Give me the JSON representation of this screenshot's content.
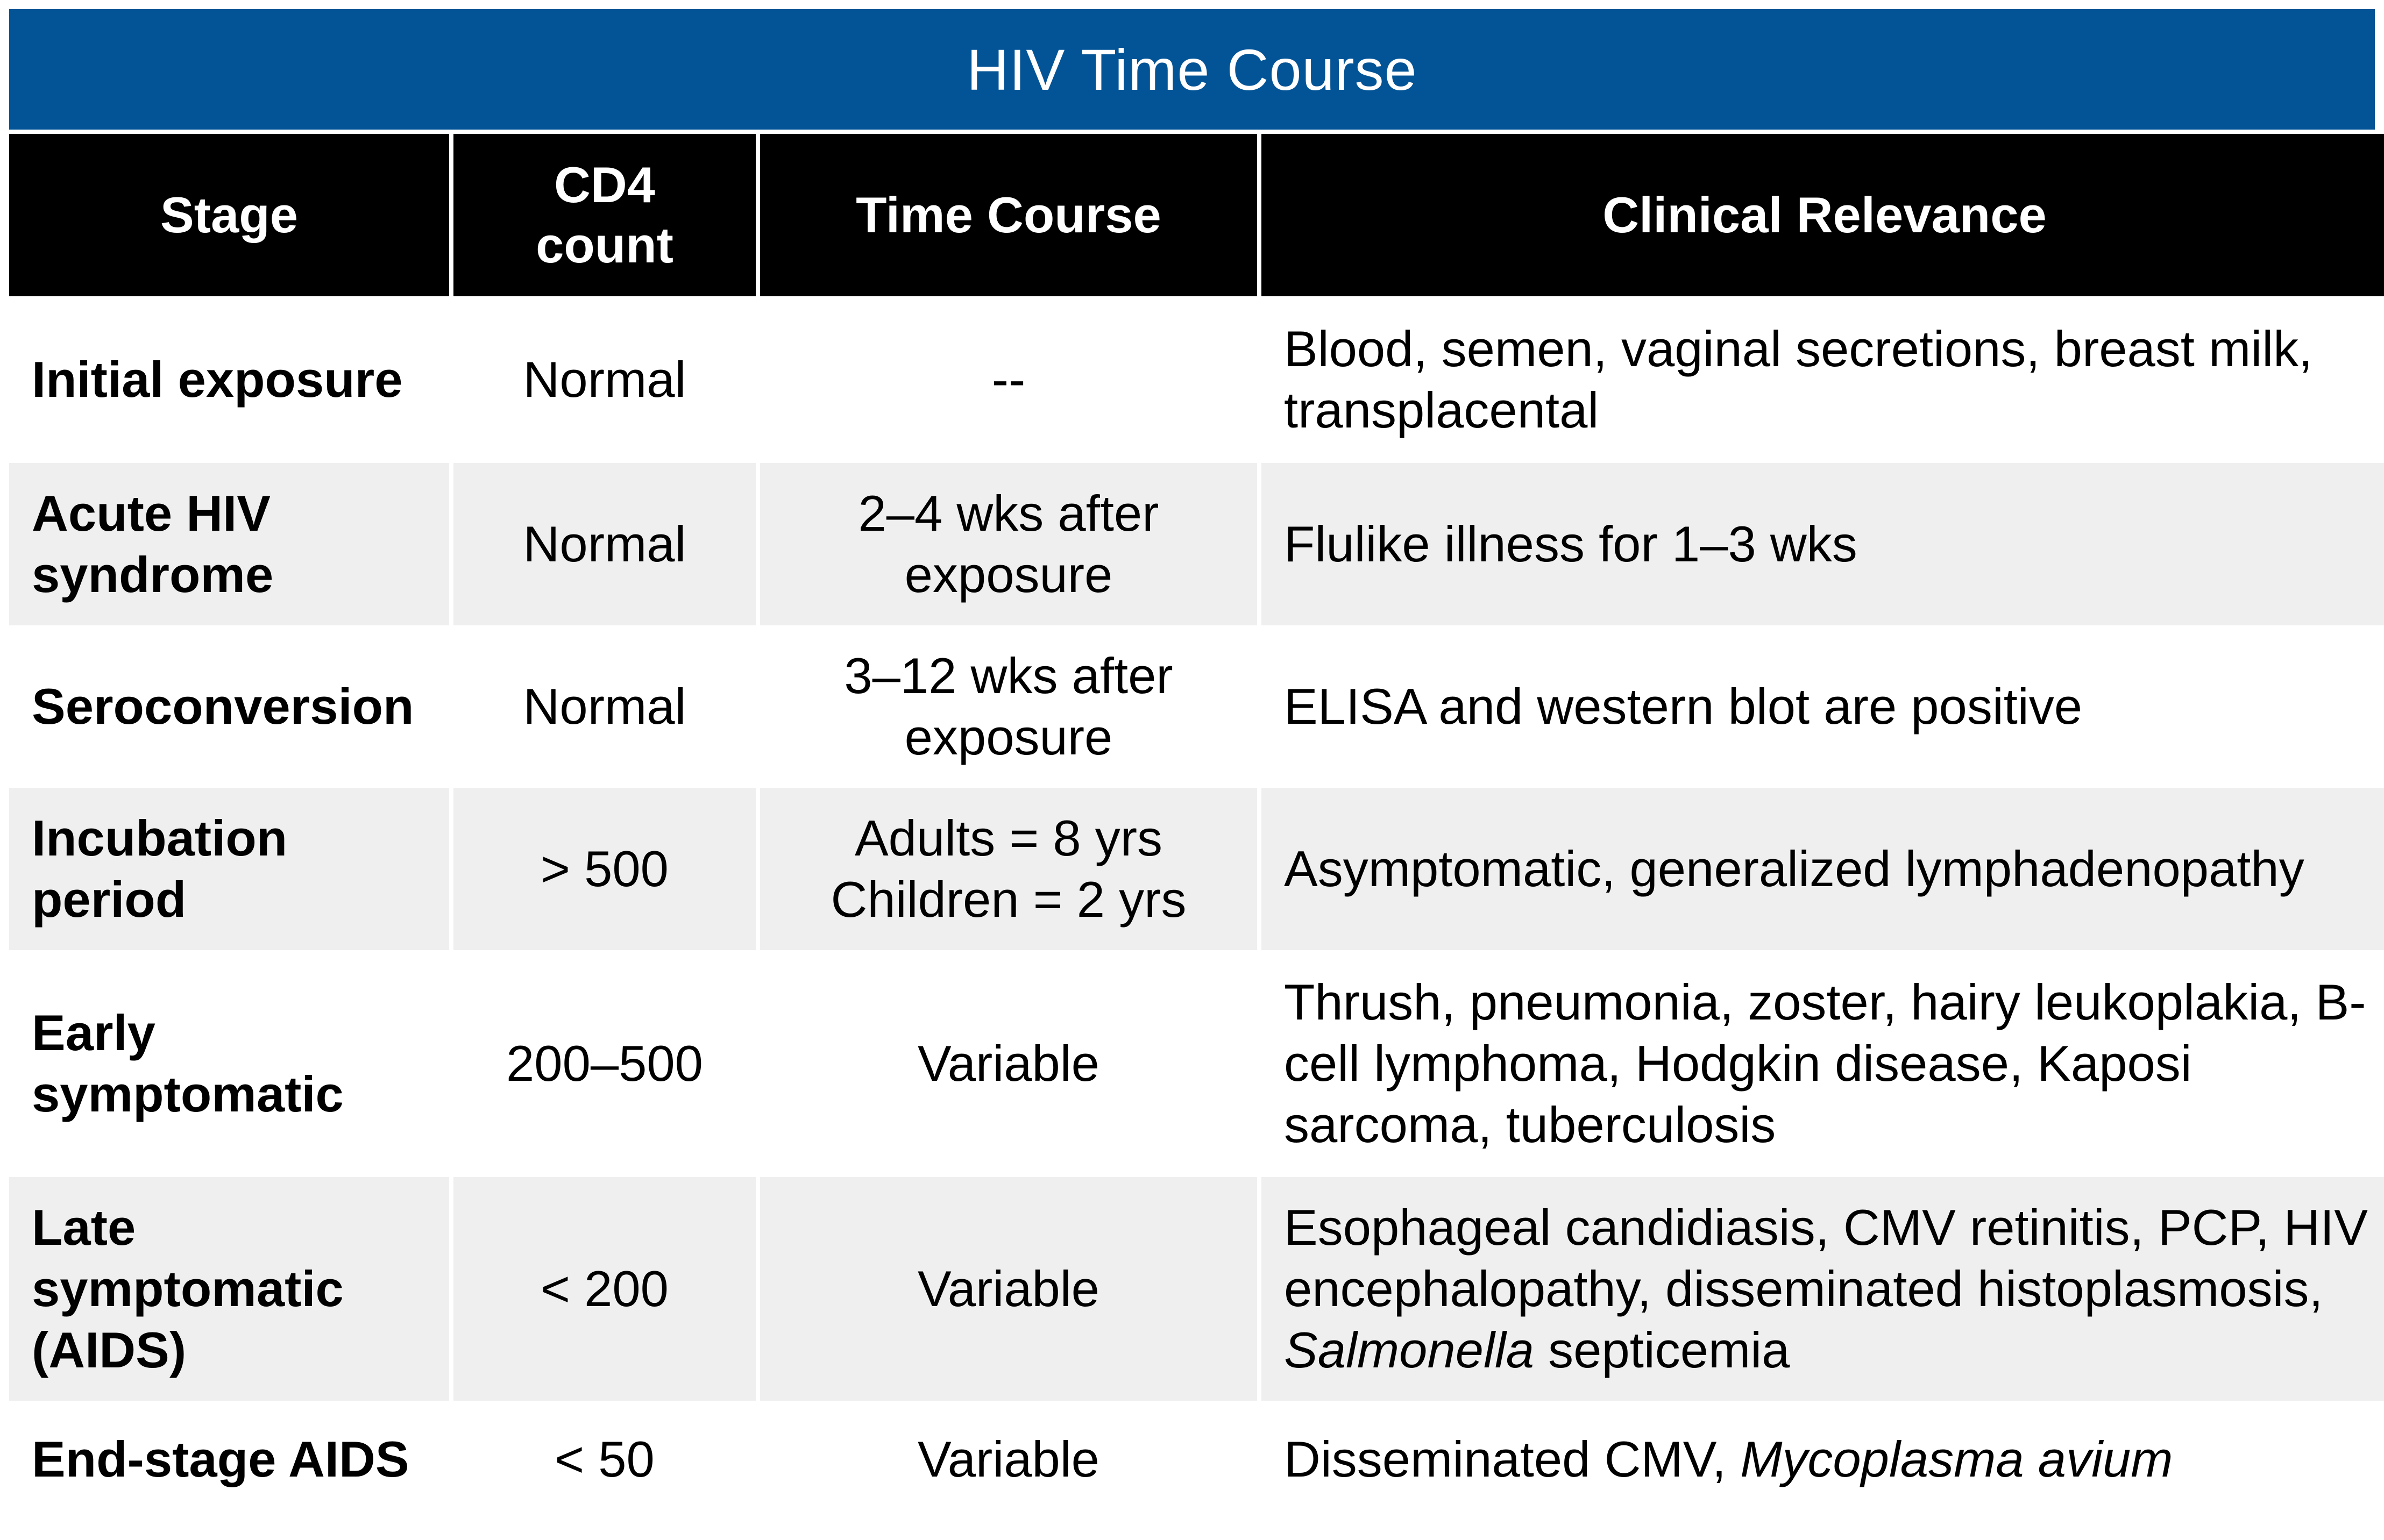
{
  "title": "HIV Time Course",
  "headers": {
    "stage": "Stage",
    "cd4": "CD4 count",
    "time": "Time Course",
    "clinical": "Clinical Relevance"
  },
  "rows": [
    {
      "stage": "Initial exposure",
      "cd4": "Normal",
      "time": "--",
      "clinical": "Blood, semen, vaginal secretions, breast milk, transplacental"
    },
    {
      "stage": "Acute HIV syndrome",
      "cd4": "Normal",
      "time": "2–4 wks after exposure",
      "clinical": "Flulike illness for 1–3 wks"
    },
    {
      "stage": "Seroconversion",
      "cd4": "Normal",
      "time": "3–12 wks after exposure",
      "clinical": "ELISA and western blot are positive"
    },
    {
      "stage": "Incubation period",
      "cd4": "> 500",
      "time_line1": "Adults = 8 yrs",
      "time_line2": "Children = 2 yrs",
      "clinical": "Asymptomatic, generalized lymphadenopathy"
    },
    {
      "stage": "Early symptomatic",
      "cd4": "200–500",
      "time": "Variable",
      "clinical": "Thrush, pneumonia, zoster, hairy leukoplakia, B-cell lymphoma, Hodgkin disease, Kaposi sarcoma, tuberculosis"
    },
    {
      "stage": "Late symptomatic (AIDS)",
      "cd4": "< 200",
      "time": "Variable",
      "clinical_pre": "Esophageal candidiasis, CMV retinitis, PCP, HIV encephalopathy, disseminated histoplasmosis, ",
      "clinical_italic": "Salmonella",
      "clinical_post": " septicemia"
    },
    {
      "stage": "End-stage AIDS",
      "cd4": "< 50",
      "time": "Variable",
      "clinical_pre": "Disseminated CMV, ",
      "clinical_italic": "Mycoplasma avium"
    }
  ],
  "colors": {
    "title_bg": "#035496",
    "header_bg": "#000000",
    "alt_row_bg": "#efefef"
  }
}
